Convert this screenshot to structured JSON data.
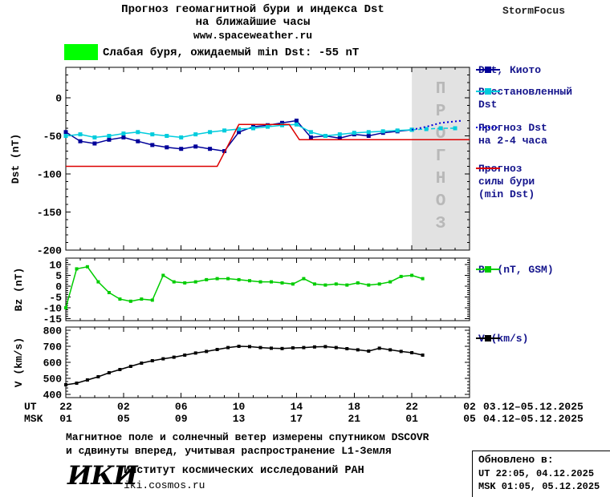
{
  "header": {
    "title_line1": "Прогноз геомагнитной бури и индекса Dst",
    "title_line2": "на ближайшие часы",
    "title_line3": "www.spaceweather.ru",
    "brand": "StormFocus"
  },
  "alert": {
    "box_color": "#00FF00",
    "text": "Слабая буря, ожидаемый min Dst: -55 nT"
  },
  "chart_data": {
    "type": "line",
    "x_unit": "hours from 22:00 UT 03.12.2025",
    "xlim": [
      0,
      28
    ],
    "forecast_region": {
      "x_start": 24,
      "x_end": 28,
      "label": "ПРОГНОЗ",
      "fill": "#E2E2E2",
      "text_color": "#B8B8B8"
    },
    "panels": [
      {
        "id": "dst",
        "ylabel": "Dst (nT)",
        "ylim": [
          -200,
          40
        ],
        "yticks": [
          0,
          -50,
          -100,
          -150,
          -200
        ],
        "series": [
          {
            "name": "Dst, Киото",
            "color": "#000099",
            "line": "solid",
            "marker": "square",
            "x": [
              0,
              1,
              2,
              3,
              4,
              5,
              6,
              7,
              8,
              9,
              10,
              11,
              12,
              13,
              14,
              15,
              16,
              17,
              18,
              19,
              20,
              21,
              22,
              23,
              24
            ],
            "y": [
              -45,
              -57,
              -60,
              -55,
              -52,
              -57,
              -62,
              -65,
              -67,
              -64,
              -67,
              -70,
              -45,
              -38,
              -36,
              -33,
              -30,
              -52,
              -50,
              -53,
              -48,
              -50,
              -46,
              -44,
              -42
            ]
          },
          {
            "name": "Восстановленный Dst",
            "color": "#00CCDD",
            "line": "solid",
            "marker": "square",
            "x": [
              0,
              1,
              2,
              3,
              4,
              5,
              6,
              7,
              8,
              9,
              10,
              11,
              12,
              13,
              14,
              15,
              16,
              17,
              18,
              19,
              20,
              21,
              22,
              23,
              24
            ],
            "y": [
              -50,
              -48,
              -52,
              -50,
              -47,
              -45,
              -48,
              -50,
              -52,
              -48,
              -45,
              -43,
              -41,
              -40,
              -38,
              -36,
              -35,
              -45,
              -50,
              -48,
              -46,
              -45,
              -44,
              -43,
              -42
            ]
          },
          {
            "name": "Восстановленный Dst (прогноз)",
            "color": "#00CCDD",
            "line": "dashed",
            "marker": "square",
            "x": [
              24,
              25,
              26,
              27
            ],
            "y": [
              -42,
              -41,
              -40,
              -40
            ]
          },
          {
            "name": "Прогноз Dst на 2-4 часа",
            "color": "#0000DD",
            "line": "dotted",
            "marker": "none",
            "x": [
              24,
              25,
              26,
              27.5
            ],
            "y": [
              -42,
              -38,
              -33,
              -30
            ]
          },
          {
            "name": "Прогноз силы бури (min Dst)",
            "color": "#DD0000",
            "line": "solid",
            "marker": "none",
            "x": [
              0,
              10.5,
              12,
              15.5,
              16.2,
              28
            ],
            "y": [
              -90,
              -90,
              -35,
              -35,
              -55,
              -55
            ]
          }
        ]
      },
      {
        "id": "bz",
        "ylabel": "Bz (nT)",
        "ylim": [
          -16,
          13
        ],
        "yticks": [
          10,
          5,
          0,
          -5,
          -10,
          -15
        ],
        "series": [
          {
            "name": "Bz (nT, GSM)",
            "color": "#00CC00",
            "line": "solid",
            "marker": "square",
            "x": [
              0,
              0.75,
              1.5,
              2.25,
              3,
              3.75,
              4.5,
              5.25,
              6,
              6.75,
              7.5,
              8.25,
              9,
              9.75,
              10.5,
              11.25,
              12,
              12.75,
              13.5,
              14.25,
              15,
              15.75,
              16.5,
              17.25,
              18,
              18.75,
              19.5,
              20.25,
              21,
              21.75,
              22.5,
              23.25,
              24,
              24.75
            ],
            "y": [
              -10,
              8,
              9,
              2,
              -3,
              -6,
              -7,
              -6,
              -6.5,
              5,
              2,
              1.5,
              2,
              3,
              3.5,
              3.5,
              3,
              2.5,
              2,
              2,
              1.5,
              1,
              3.5,
              1,
              0.5,
              1,
              0.5,
              1.5,
              0.5,
              1,
              2,
              4.5,
              5,
              3.5
            ]
          }
        ]
      },
      {
        "id": "v",
        "ylabel": "V (km/s)",
        "ylim": [
          380,
          820
        ],
        "yticks": [
          800,
          700,
          600,
          500,
          400
        ],
        "series": [
          {
            "name": "V (km/s)",
            "color": "#000000",
            "line": "solid",
            "marker": "square",
            "x": [
              0,
              0.75,
              1.5,
              2.25,
              3,
              3.75,
              4.5,
              5.25,
              6,
              6.75,
              7.5,
              8.25,
              9,
              9.75,
              10.5,
              11.25,
              12,
              12.75,
              13.5,
              14.25,
              15,
              15.75,
              16.5,
              17.25,
              18,
              18.75,
              19.5,
              20.25,
              21,
              21.75,
              22.5,
              23.25,
              24,
              24.75
            ],
            "y": [
              460,
              470,
              490,
              510,
              535,
              555,
              575,
              595,
              610,
              622,
              632,
              645,
              658,
              668,
              680,
              692,
              700,
              698,
              692,
              688,
              686,
              690,
              692,
              696,
              698,
              692,
              685,
              678,
              670,
              688,
              678,
              668,
              660,
              645
            ]
          }
        ]
      }
    ]
  },
  "xaxis": {
    "ut_label": "UT",
    "msk_label": "MSK",
    "tick_hours": [
      0,
      4,
      8,
      12,
      16,
      20,
      24,
      28
    ],
    "ut_ticks": [
      "22",
      "02",
      "06",
      "10",
      "14",
      "18",
      "22",
      "02"
    ],
    "msk_ticks": [
      "01",
      "05",
      "09",
      "13",
      "17",
      "21",
      "01",
      "05"
    ],
    "ut_dates": "03.12–05.12.2025",
    "msk_dates": "04.12–05.12.2025"
  },
  "legend_main": [
    {
      "lines": [
        "Dst, Киото"
      ],
      "color": "#000099",
      "line": "solid",
      "marker": true,
      "gap": 0
    },
    {
      "lines": [
        "Восстановленный",
        "Dst"
      ],
      "color": "#00CCDD",
      "line": "solid",
      "marker": true,
      "gap": 11
    },
    {
      "lines": [
        "Прогноз Dst",
        "на 2-4 часа"
      ],
      "color": "#0000DD",
      "line": "dotted",
      "marker": false,
      "gap": 13
    },
    {
      "lines": [
        "Прогноз",
        "силы бури",
        "(min Dst)"
      ],
      "color": "#DD0000",
      "line": "solid",
      "marker": false,
      "gap": 19
    }
  ],
  "legend_bz": {
    "label": "Bz (nT, GSM)",
    "color": "#00CC00"
  },
  "legend_v": {
    "label": "V (km/s)",
    "color": "#000000"
  },
  "footnote": {
    "line1": "Магнитное поле и солнечный ветер измерены спутником DSCOVR",
    "line2": "и сдвинуты вперед, учитывая распространение L1-Земля"
  },
  "updated": {
    "title": "Обновлено в:",
    "ut": "UT  22:05, 04.12.2025",
    "msk": "MSK 01:05, 05.12.2025"
  },
  "footer": {
    "logo": "ИКИ",
    "org": "Институт космических исследований РАН",
    "site": "iki.cosmos.ru"
  }
}
